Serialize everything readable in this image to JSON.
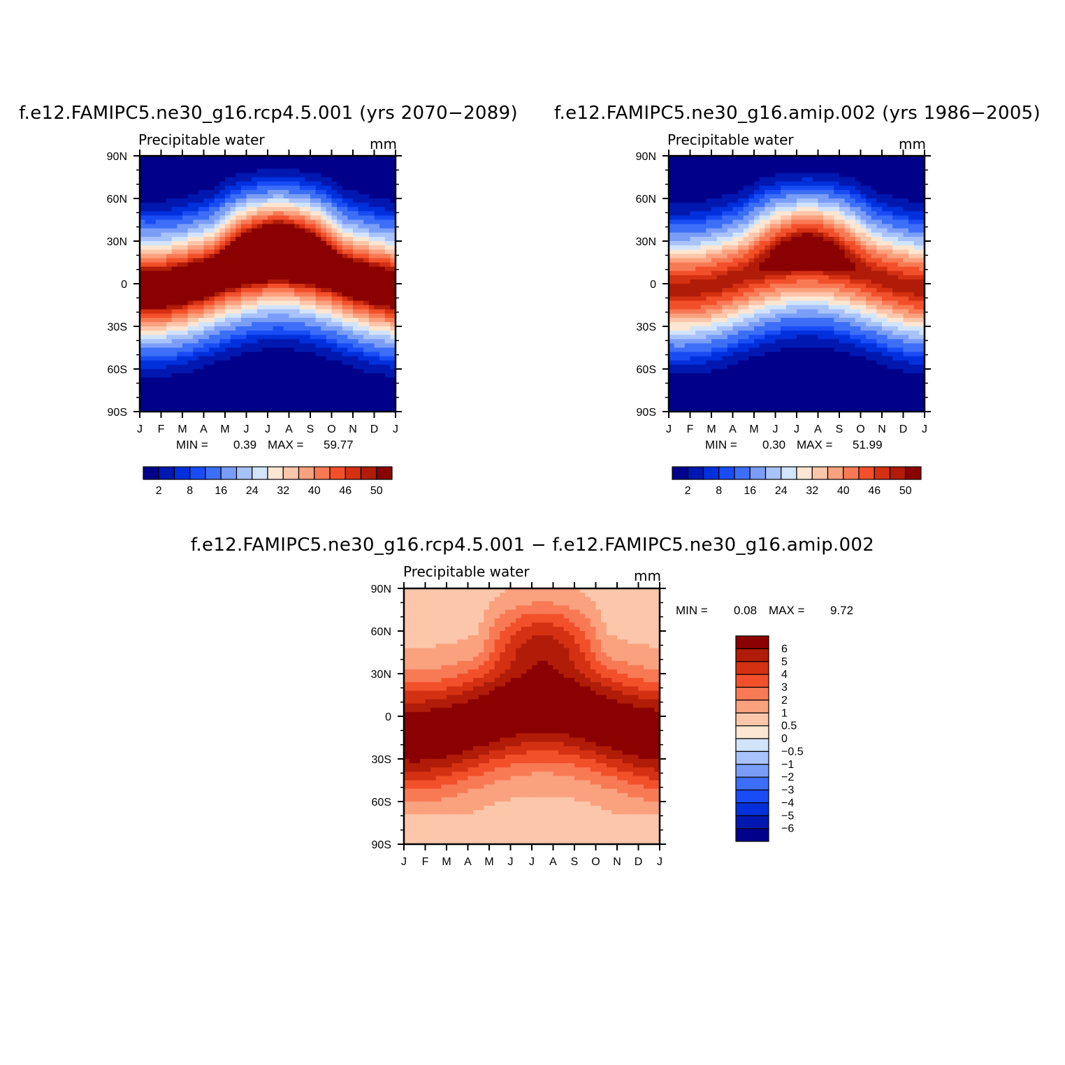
{
  "chart_data": [
    {
      "type": "heatmap",
      "title": "f.e12.FAMIPC5.ne30_g16.rcp4.5.001 (yrs 2070−2089)",
      "left_label": "Precipitable water",
      "right_label": "mm",
      "x_ticks": [
        "J",
        "F",
        "M",
        "A",
        "M",
        "J",
        "J",
        "A",
        "S",
        "O",
        "N",
        "D",
        "J"
      ],
      "y_ticks": [
        "90N",
        "60N",
        "30N",
        "0",
        "30S",
        "60S",
        "90S"
      ],
      "ylim": [
        -90,
        90
      ],
      "stats": {
        "min_label": "MIN =",
        "min": "0.39",
        "max_label": "MAX =",
        "max": "59.77"
      },
      "colorbar": {
        "orientation": "horizontal",
        "labels": [
          "2",
          "8",
          "16",
          "24",
          "32",
          "40",
          "46",
          "50"
        ],
        "colors": [
          "#00008b",
          "#0018b0",
          "#0030dc",
          "#1a4cf5",
          "#3d6ef7",
          "#7a9ef8",
          "#a8c2fb",
          "#d2e4fc",
          "#fde6d2",
          "#fcc6aa",
          "#faa17e",
          "#f87a55",
          "#f2502b",
          "#d43012",
          "#b01c08",
          "#8b0000"
        ]
      },
      "series_note_free": true,
      "field": {
        "kind": "absolute",
        "eq_max": 56,
        "pole_min": 1,
        "seasonal_shift": 14,
        "nh_summer_boost": 18
      }
    },
    {
      "type": "heatmap",
      "title": "f.e12.FAMIPC5.ne30_g16.amip.002 (yrs 1986−2005)",
      "left_label": "Precipitable water",
      "right_label": "mm",
      "x_ticks": [
        "J",
        "F",
        "M",
        "A",
        "M",
        "J",
        "J",
        "A",
        "S",
        "O",
        "N",
        "D",
        "J"
      ],
      "y_ticks": [
        "90N",
        "60N",
        "30N",
        "0",
        "30S",
        "60S",
        "90S"
      ],
      "ylim": [
        -90,
        90
      ],
      "stats": {
        "min_label": "MIN =",
        "min": "0.30",
        "max_label": "MAX =",
        "max": "51.99"
      },
      "colorbar": {
        "orientation": "horizontal",
        "labels": [
          "2",
          "8",
          "16",
          "24",
          "32",
          "40",
          "46",
          "50"
        ],
        "colors": [
          "#00008b",
          "#0018b0",
          "#0030dc",
          "#1a4cf5",
          "#3d6ef7",
          "#7a9ef8",
          "#a8c2fb",
          "#d2e4fc",
          "#fde6d2",
          "#fcc6aa",
          "#faa17e",
          "#f87a55",
          "#f2502b",
          "#d43012",
          "#b01c08",
          "#8b0000"
        ]
      },
      "field": {
        "kind": "absolute",
        "eq_max": 47,
        "pole_min": 1,
        "seasonal_shift": 14,
        "nh_summer_boost": 14
      }
    },
    {
      "type": "heatmap",
      "title": "f.e12.FAMIPC5.ne30_g16.rcp4.5.001 − f.e12.FAMIPC5.ne30_g16.amip.002",
      "left_label": "Precipitable water",
      "right_label": "mm",
      "x_ticks": [
        "J",
        "F",
        "M",
        "A",
        "M",
        "J",
        "J",
        "A",
        "S",
        "O",
        "N",
        "D",
        "J"
      ],
      "y_ticks": [
        "90N",
        "60N",
        "30N",
        "0",
        "30S",
        "60S",
        "90S"
      ],
      "ylim": [
        -90,
        90
      ],
      "stats": {
        "min_label": "MIN =",
        "min": "0.08",
        "max_label": "MAX =",
        "max": "9.72"
      },
      "colorbar": {
        "orientation": "vertical",
        "labels": [
          "6",
          "5",
          "4",
          "3",
          "2",
          "1",
          "0.5",
          "0",
          "−0.5",
          "−1",
          "−2",
          "−3",
          "−4",
          "−5",
          "−6"
        ],
        "colors": [
          "#8b0000",
          "#b01c08",
          "#d43012",
          "#f2502b",
          "#f87a55",
          "#faa17e",
          "#fcc6aa",
          "#fde6d2",
          "#d2e4fc",
          "#a8c2fb",
          "#7a9ef8",
          "#3d6ef7",
          "#1a4cf5",
          "#0030dc",
          "#0018b0",
          "#00008b"
        ]
      },
      "field": {
        "kind": "difference"
      }
    }
  ]
}
